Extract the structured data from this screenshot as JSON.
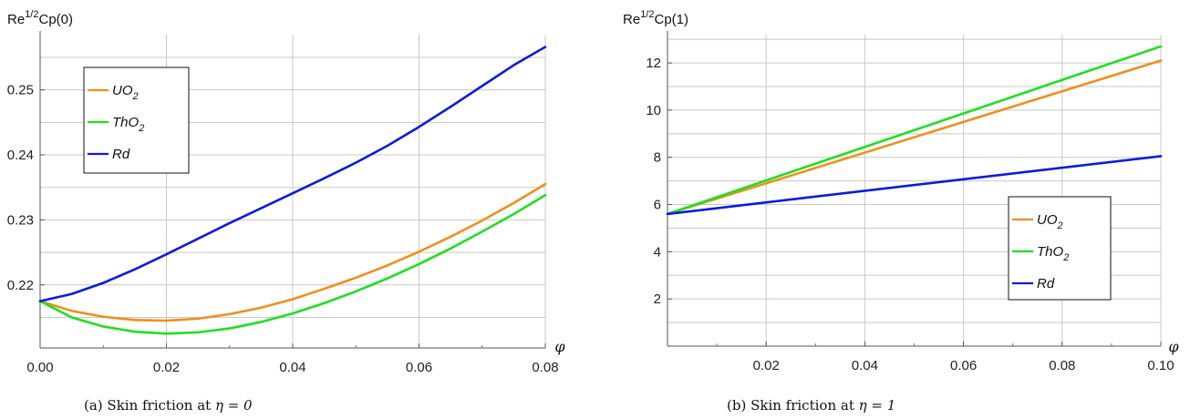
{
  "chart_data": [
    {
      "type": "line",
      "ylabel_base": "Re",
      "ylabel_sup": "1/2",
      "ylabel_rest": "Cp(0)",
      "xlabel": "φ",
      "caption_prefix": "(a) Skin friction at",
      "caption_eq": "η = 0",
      "xlim": [
        0,
        0.08
      ],
      "ylim": [
        0.2103,
        0.2585
      ],
      "xticks": [
        0.0,
        0.02,
        0.04,
        0.06,
        0.08
      ],
      "xtick_labels": [
        "0.00",
        "0.02",
        "0.04",
        "0.06",
        "0.08"
      ],
      "yticks": [
        0.22,
        0.23,
        0.24,
        0.25
      ],
      "ytick_labels": [
        "0.22",
        "0.23",
        "0.24",
        "0.25"
      ],
      "xgrid": [
        0.02,
        0.04,
        0.06,
        0.08
      ],
      "ygrid": [
        0.215,
        0.22,
        0.225,
        0.23,
        0.235,
        0.24,
        0.245,
        0.25,
        0.255
      ],
      "grid": true,
      "legend_position": "top-left",
      "x": [
        0.0,
        0.005,
        0.01,
        0.015,
        0.02,
        0.025,
        0.03,
        0.035,
        0.04,
        0.045,
        0.05,
        0.055,
        0.06,
        0.065,
        0.07,
        0.075,
        0.08
      ],
      "series": [
        {
          "name": "UO",
          "sub": "2",
          "color": "#f28e1c",
          "values": [
            0.2175,
            0.216,
            0.2151,
            0.2146,
            0.2145,
            0.2148,
            0.2155,
            0.2165,
            0.2178,
            0.2194,
            0.2211,
            0.223,
            0.2251,
            0.2274,
            0.2299,
            0.2326,
            0.2355
          ]
        },
        {
          "name": "ThO",
          "sub": "2",
          "color": "#1fe01f",
          "values": [
            0.2175,
            0.215,
            0.2136,
            0.2128,
            0.2125,
            0.2127,
            0.2133,
            0.2143,
            0.2156,
            0.2172,
            0.219,
            0.221,
            0.2232,
            0.2256,
            0.2282,
            0.2309,
            0.2338
          ]
        },
        {
          "name": "Rd",
          "sub": "",
          "color": "#0b1be0",
          "values": [
            0.2175,
            0.2186,
            0.2203,
            0.2224,
            0.2247,
            0.2271,
            0.2295,
            0.2318,
            0.2341,
            0.2364,
            0.2388,
            0.2414,
            0.2443,
            0.2474,
            0.2506,
            0.2538,
            0.2566
          ]
        }
      ]
    },
    {
      "type": "line",
      "ylabel_base": "Re",
      "ylabel_sup": "1/2",
      "ylabel_rest": "Cp(1)",
      "xlabel": "φ",
      "caption_prefix": "(b) Skin friction at",
      "caption_eq": "η = 1",
      "xlim": [
        0,
        0.1
      ],
      "ylim": [
        0,
        13.2
      ],
      "xticks": [
        0.02,
        0.04,
        0.06,
        0.08,
        0.1
      ],
      "xtick_labels": [
        "0.02",
        "0.04",
        "0.06",
        "0.08",
        "0.10"
      ],
      "yticks": [
        2,
        4,
        6,
        8,
        10,
        12
      ],
      "ytick_labels": [
        "2",
        "4",
        "6",
        "8",
        "10",
        "12"
      ],
      "xgrid": [
        0.02,
        0.04,
        0.06,
        0.08,
        0.1
      ],
      "ygrid": [
        1,
        2,
        3,
        4,
        5,
        6,
        7,
        8,
        9,
        10,
        11,
        12,
        13
      ],
      "grid": true,
      "legend_position": "bottom-right",
      "x": [
        0,
        0.1
      ],
      "series": [
        {
          "name": "UO",
          "sub": "2",
          "color": "#f28e1c",
          "values": [
            5.6,
            12.1
          ]
        },
        {
          "name": "ThO",
          "sub": "2",
          "color": "#1fe01f",
          "values": [
            5.6,
            12.7
          ]
        },
        {
          "name": "Rd",
          "sub": "",
          "color": "#0b1be0",
          "values": [
            5.6,
            8.05
          ]
        }
      ]
    }
  ]
}
